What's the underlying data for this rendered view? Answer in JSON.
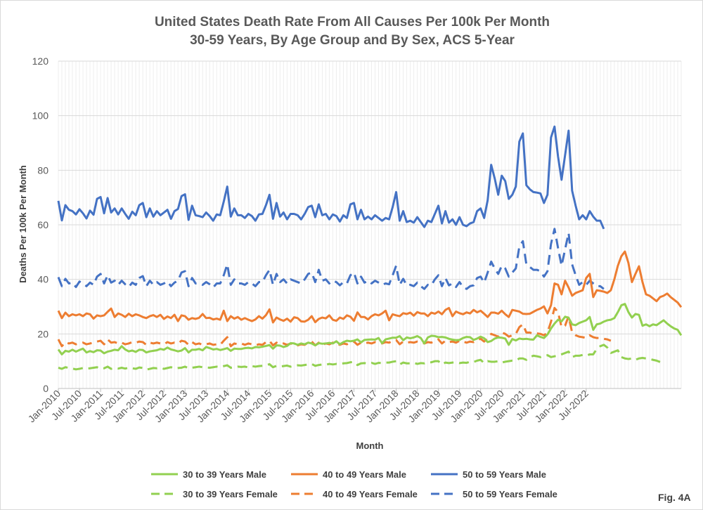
{
  "figure_label": "Fig. 4A",
  "chart_data": {
    "type": "line",
    "title": "United States Death Rate From All Causes Per 100k Per Month",
    "subtitle": "30-59 Years, By Age Group and By Sex, ACS 5-Year",
    "xlabel": "Month",
    "ylabel": "Deaths Per 100k Per Month",
    "ylim": [
      0,
      120
    ],
    "yticks": [
      0,
      20,
      40,
      60,
      80,
      100,
      120
    ],
    "grid": true,
    "legend_position": "bottom",
    "x_start": "Jan-2010",
    "x_end": "Nov-2022",
    "x_ticks": [
      "Jan-2010",
      "Jul-2010",
      "Jan-2011",
      "Jul-2011",
      "Jan-2012",
      "Jul-2012",
      "Jan-2013",
      "Jul-2013",
      "Jan-2014",
      "Jul-2014",
      "Jan-2015",
      "Jul-2015",
      "Jan-2016",
      "Jul-2016",
      "Jan-2017",
      "Jul-2017",
      "Jan-2018",
      "Jul-2018",
      "Jan-2019",
      "Jul-2019",
      "Jan-2020",
      "Jul-2020",
      "Jan-2021",
      "Jul-2021",
      "Jan-2022",
      "Jul-2022"
    ],
    "series": [
      {
        "name": "30 to 39 Years Male",
        "color": "#92d050",
        "dash": false,
        "values": [
          14.3,
          12.5,
          13.8,
          13.5,
          14.2,
          13.5,
          14.1,
          14.6,
          13.2,
          13.7,
          13.3,
          14.0,
          13.9,
          12.9,
          13.5,
          13.8,
          14.2,
          14.0,
          15.5,
          14.3,
          13.6,
          13.9,
          13.4,
          14.2,
          14.1,
          13.2,
          13.6,
          13.8,
          14.0,
          14.5,
          14.2,
          15.0,
          14.3,
          14.0,
          13.6,
          13.9,
          14.8,
          13.2,
          14.2,
          14.2,
          14.5,
          14.0,
          15.2,
          14.8,
          14.3,
          14.5,
          14.1,
          14.4,
          14.8,
          13.8,
          14.6,
          14.5,
          14.5,
          14.8,
          14.9,
          14.7,
          15.2,
          15.1,
          15.3,
          15.6,
          15.9,
          14.6,
          15.8,
          15.7,
          15.2,
          15.6,
          16.6,
          16.5,
          16.0,
          16.5,
          16.2,
          16.8,
          16.5,
          15.8,
          16.6,
          16.4,
          16.5,
          16.7,
          16.5,
          17.3,
          16.2,
          17.0,
          17.5,
          17.3,
          17.5,
          18.0,
          16.9,
          17.8,
          17.9,
          18.0,
          17.9,
          18.5,
          16.6,
          18.0,
          18.3,
          18.6,
          18.6,
          19.2,
          17.7,
          18.7,
          18.4,
          18.7,
          19.2,
          18.5,
          16.5,
          18.7,
          19.3,
          19.2,
          18.8,
          18.9,
          18.7,
          18.2,
          17.9,
          17.7,
          17.8,
          18.5,
          18.9,
          18.8,
          17.8,
          18.3,
          19.0,
          18.4,
          17.0,
          17.4,
          18.3,
          18.7,
          18.6,
          18.3,
          16.0,
          18.1,
          17.6,
          18.3,
          18.1,
          18.2,
          18.0,
          17.9,
          19.5,
          18.9,
          18.5,
          19.8,
          22.0,
          23.8,
          25.2,
          24.6,
          26.3,
          25.9,
          23.5,
          23.2,
          24.0,
          24.5,
          25.0,
          26.2,
          21.5,
          23.5,
          23.8,
          24.5,
          25.0,
          25.2,
          25.8,
          28.0,
          30.5,
          31.0,
          28.0,
          26.0,
          27.3,
          27.0,
          23.0,
          23.5,
          22.8,
          23.5,
          23.2,
          24.1,
          25.0,
          23.8,
          22.8,
          22.0,
          21.5,
          19.5
        ]
      },
      {
        "name": "40 to 49 Years Male",
        "color": "#ed7d31",
        "dash": false,
        "values": [
          28.5,
          25.8,
          27.8,
          26.5,
          27.2,
          26.8,
          27.2,
          26.5,
          27.5,
          27.2,
          25.6,
          26.8,
          26.5,
          26.8,
          28.1,
          29.3,
          26.2,
          27.5,
          27.0,
          26.2,
          27.4,
          26.5,
          27.2,
          26.8,
          26.2,
          25.8,
          26.5,
          26.9,
          26.2,
          27.0,
          25.5,
          26.4,
          25.8,
          27.0,
          24.7,
          26.8,
          26.5,
          25.2,
          25.8,
          25.5,
          25.9,
          27.3,
          25.8,
          25.9,
          25.3,
          25.6,
          25.2,
          28.5,
          24.7,
          26.5,
          25.6,
          26.2,
          25.2,
          25.8,
          25.2,
          24.7,
          25.3,
          26.5,
          25.6,
          26.9,
          29.0,
          24.2,
          26.0,
          25.3,
          24.8,
          25.6,
          24.5,
          26.1,
          25.8,
          24.6,
          24.5,
          25.2,
          26.5,
          24.3,
          25.5,
          26.0,
          25.7,
          26.8,
          25.2,
          24.8,
          26.0,
          25.5,
          26.8,
          26.3,
          24.8,
          27.9,
          26.2,
          26.2,
          25.3,
          26.5,
          27.2,
          26.8,
          27.5,
          28.5,
          25.0,
          27.2,
          26.8,
          26.5,
          27.6,
          27.3,
          27.8,
          26.7,
          28.0,
          27.5,
          27.5,
          26.5,
          27.8,
          27.4,
          28.2,
          27.2,
          28.8,
          29.5,
          26.5,
          28.2,
          27.6,
          27.2,
          27.9,
          27.5,
          28.8,
          27.9,
          28.5,
          27.4,
          26.2,
          27.8,
          27.8,
          27.4,
          28.5,
          27.2,
          26.2,
          28.8,
          28.5,
          28.2,
          27.4,
          27.3,
          27.4,
          28.1,
          28.8,
          29.3,
          30.1,
          27.5,
          30.5,
          38.5,
          38.0,
          34.5,
          39.5,
          37.0,
          34.0,
          35.0,
          35.5,
          36.0,
          40.5,
          42.0,
          33.5,
          36.0,
          35.8,
          35.5,
          35.0,
          36.0,
          40.0,
          45.0,
          48.5,
          50.2,
          46.0,
          39.0,
          42.0,
          44.8,
          39.0,
          34.5,
          34.0,
          33.0,
          32.0,
          33.5,
          34.0,
          34.8,
          33.5,
          32.5,
          31.5,
          29.8
        ]
      },
      {
        "name": "50 to 59 Years Male",
        "color": "#4472c4",
        "dash": false,
        "values": [
          68.8,
          61.6,
          67.2,
          65.5,
          65.0,
          63.8,
          65.7,
          64.2,
          62.3,
          65.2,
          63.7,
          69.5,
          70.2,
          64.2,
          69.8,
          64.5,
          66.0,
          63.8,
          66.0,
          64.0,
          62.2,
          64.8,
          63.5,
          67.2,
          68.0,
          62.8,
          66.0,
          63.0,
          65.0,
          63.5,
          64.5,
          65.5,
          62.2,
          65.0,
          65.8,
          70.5,
          71.2,
          61.8,
          67.0,
          63.5,
          63.2,
          62.8,
          64.5,
          63.2,
          61.5,
          63.8,
          63.5,
          68.5,
          74.0,
          63.0,
          66.0,
          63.5,
          63.5,
          62.5,
          64.0,
          63.2,
          61.5,
          63.8,
          64.0,
          67.2,
          71.0,
          62.2,
          68.0,
          63.0,
          64.5,
          62.0,
          64.0,
          64.0,
          63.5,
          62.0,
          64.0,
          66.5,
          67.0,
          62.8,
          67.5,
          63.5,
          64.0,
          62.0,
          63.8,
          63.2,
          61.2,
          63.5,
          62.5,
          67.5,
          68.0,
          62.0,
          65.5,
          62.0,
          63.0,
          62.0,
          63.5,
          62.5,
          61.5,
          62.5,
          62.0,
          66.5,
          72.0,
          61.5,
          65.0,
          61.0,
          61.5,
          60.8,
          62.8,
          61.0,
          59.2,
          61.5,
          61.0,
          64.0,
          67.0,
          60.5,
          65.0,
          60.8,
          62.0,
          60.0,
          62.8,
          60.0,
          59.5,
          60.5,
          61.0,
          65.0,
          66.0,
          62.5,
          69.0,
          82.0,
          77.0,
          71.0,
          78.0,
          76.0,
          69.5,
          71.0,
          74.0,
          90.5,
          93.5,
          74.5,
          73.0,
          72.0,
          71.8,
          71.5,
          68.0,
          71.0,
          92.0,
          96.0,
          85.0,
          76.5,
          85.5,
          94.5,
          72.5,
          67.0,
          62.0,
          63.5,
          62.0,
          65.0,
          63.0,
          61.5,
          61.5,
          58.5
        ]
      },
      {
        "name": "30 to 39 Years Female",
        "color": "#92d050",
        "dash": true,
        "values": [
          7.6,
          7.2,
          7.8,
          7.5,
          7.3,
          7.0,
          7.2,
          7.5,
          7.3,
          7.4,
          7.6,
          7.8,
          7.2,
          7.4,
          8.0,
          7.2,
          7.5,
          7.3,
          7.6,
          7.3,
          7.6,
          7.4,
          7.2,
          7.7,
          7.5,
          6.9,
          7.2,
          7.5,
          7.4,
          7.6,
          7.2,
          7.5,
          7.8,
          7.3,
          7.5,
          7.6,
          8.0,
          7.4,
          7.6,
          7.8,
          8.0,
          7.8,
          7.7,
          7.6,
          7.8,
          8.0,
          7.8,
          8.2,
          8.5,
          7.6,
          7.8,
          8.0,
          7.9,
          8.0,
          7.7,
          8.2,
          8.0,
          8.2,
          8.3,
          8.5,
          8.9,
          7.8,
          8.3,
          8.1,
          8.2,
          8.4,
          8.0,
          8.3,
          8.5,
          8.4,
          8.6,
          8.8,
          9.0,
          8.3,
          8.6,
          8.8,
          8.7,
          9.0,
          8.8,
          9.0,
          8.9,
          9.2,
          9.3,
          9.6,
          9.8,
          8.6,
          9.2,
          9.3,
          9.1,
          9.4,
          9.0,
          9.4,
          9.3,
          9.5,
          9.5,
          9.8,
          10.0,
          8.8,
          9.5,
          9.2,
          9.2,
          9.4,
          9.0,
          9.3,
          9.2,
          9.6,
          9.6,
          10.0,
          10.0,
          8.8,
          9.5,
          9.3,
          9.5,
          9.6,
          9.3,
          9.5,
          9.4,
          9.8,
          9.7,
          10.2,
          10.5,
          9.3,
          10.0,
          9.8,
          9.8,
          10.0,
          9.5,
          9.8,
          10.0,
          10.2,
          10.2,
          11.0,
          11.0,
          10.5,
          11.5,
          12.0,
          11.8,
          11.5,
          12.0,
          12.2,
          11.5,
          11.8,
          12.0,
          12.5,
          13.0,
          13.5,
          11.5,
          12.0,
          12.0,
          12.3,
          12.0,
          12.5,
          12.5,
          14.5,
          15.5,
          16.0,
          15.0,
          13.0,
          13.5,
          14.0,
          11.5,
          11.0,
          10.8,
          11.0,
          10.5,
          11.0,
          11.2,
          11.0,
          10.8,
          10.5,
          10.2,
          9.7
        ]
      },
      {
        "name": "40 to 49 Years Female",
        "color": "#ed7d31",
        "dash": true,
        "values": [
          18.0,
          15.5,
          17.0,
          16.5,
          16.8,
          16.2,
          16.5,
          16.8,
          16.2,
          16.5,
          16.8,
          17.2,
          17.5,
          16.2,
          18.0,
          16.8,
          17.0,
          16.5,
          16.8,
          16.2,
          16.5,
          17.0,
          16.8,
          17.2,
          17.0,
          16.0,
          16.8,
          16.5,
          16.8,
          16.5,
          16.2,
          17.0,
          16.5,
          16.8,
          16.5,
          17.5,
          17.2,
          16.0,
          17.0,
          16.2,
          16.5,
          16.0,
          16.2,
          16.5,
          16.0,
          16.2,
          16.0,
          17.5,
          18.8,
          15.5,
          16.5,
          16.2,
          16.5,
          16.0,
          16.5,
          16.2,
          15.8,
          16.2,
          16.0,
          17.0,
          17.5,
          15.8,
          16.8,
          16.2,
          16.5,
          16.0,
          16.5,
          16.2,
          15.8,
          16.2,
          16.0,
          16.8,
          17.2,
          15.8,
          16.8,
          16.0,
          16.5,
          16.2,
          16.8,
          16.5,
          16.0,
          16.5,
          16.2,
          17.0,
          17.2,
          16.0,
          16.8,
          16.5,
          16.8,
          16.5,
          17.0,
          16.8,
          16.5,
          17.0,
          16.8,
          17.5,
          17.8,
          16.2,
          17.2,
          16.8,
          17.0,
          16.8,
          17.2,
          17.0,
          16.5,
          17.0,
          16.8,
          17.5,
          18.0,
          16.5,
          17.5,
          17.0,
          17.2,
          16.8,
          17.5,
          17.2,
          16.8,
          17.2,
          17.0,
          17.8,
          18.2,
          17.2,
          18.5,
          20.0,
          19.5,
          19.0,
          20.5,
          20.0,
          19.0,
          19.5,
          20.0,
          22.5,
          23.5,
          20.5,
          20.5,
          20.0,
          20.2,
          20.0,
          19.5,
          20.5,
          24.5,
          29.5,
          28.0,
          22.5,
          23.0,
          26.5,
          20.5,
          19.5,
          19.0,
          18.8,
          18.5,
          19.5,
          18.8,
          18.5,
          18.5,
          18.2,
          18.0,
          17.5
        ]
      },
      {
        "name": "50 to 59 Years Female",
        "color": "#4472c4",
        "dash": true,
        "values": [
          40.8,
          37.5,
          40.2,
          38.5,
          38.8,
          37.2,
          39.2,
          38.5,
          37.5,
          38.8,
          38.0,
          41.0,
          42.0,
          38.5,
          41.5,
          38.8,
          39.5,
          38.0,
          39.5,
          38.2,
          37.2,
          38.8,
          38.0,
          40.5,
          41.2,
          37.5,
          39.5,
          38.0,
          39.0,
          38.0,
          38.5,
          39.2,
          37.5,
          38.8,
          39.5,
          42.5,
          43.0,
          37.5,
          40.5,
          38.5,
          38.5,
          38.0,
          39.0,
          38.2,
          37.0,
          38.5,
          38.5,
          41.5,
          45.5,
          38.0,
          40.0,
          38.5,
          38.5,
          38.0,
          39.0,
          38.5,
          37.5,
          39.0,
          39.0,
          41.5,
          43.5,
          38.0,
          42.0,
          39.0,
          40.0,
          38.5,
          40.0,
          39.5,
          39.0,
          38.5,
          40.0,
          42.0,
          42.5,
          39.0,
          43.5,
          39.5,
          40.0,
          38.5,
          39.5,
          39.0,
          37.8,
          39.0,
          38.5,
          41.5,
          42.5,
          38.5,
          41.0,
          38.8,
          39.5,
          38.5,
          39.5,
          38.8,
          38.0,
          38.5,
          38.2,
          41.5,
          45.0,
          38.0,
          40.2,
          37.8,
          38.0,
          37.5,
          38.8,
          37.5,
          36.5,
          38.0,
          37.8,
          40.0,
          41.5,
          37.5,
          40.5,
          37.8,
          38.5,
          37.2,
          39.0,
          37.2,
          36.5,
          37.5,
          37.8,
          40.5,
          41.0,
          38.8,
          42.5,
          46.5,
          44.0,
          42.0,
          45.0,
          44.0,
          41.0,
          42.5,
          44.0,
          52.0,
          54.0,
          45.5,
          44.5,
          43.5,
          43.5,
          43.0,
          41.0,
          43.0,
          53.0,
          58.5,
          51.5,
          45.0,
          51.0,
          57.0,
          45.5,
          41.5,
          38.0,
          39.0,
          38.0,
          39.5,
          38.5,
          37.5,
          37.5,
          36.5
        ]
      }
    ]
  }
}
